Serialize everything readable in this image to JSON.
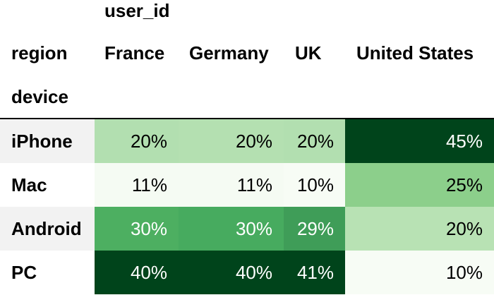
{
  "table": {
    "columns_header_label": "user_id",
    "column_index_name": "region",
    "row_index_name": "device",
    "columns": [
      "France",
      "Germany",
      "UK",
      "United States"
    ],
    "rows": [
      {
        "label": "iPhone",
        "cells": [
          "20%",
          "20%",
          "20%",
          "45%"
        ]
      },
      {
        "label": "Mac",
        "cells": [
          "11%",
          "11%",
          "10%",
          "25%"
        ]
      },
      {
        "label": "Android",
        "cells": [
          "30%",
          "30%",
          "29%",
          "20%"
        ]
      },
      {
        "label": "PC",
        "cells": [
          "40%",
          "40%",
          "41%",
          "10%"
        ]
      }
    ],
    "row_label_backgrounds": [
      "#f2f2f2",
      "#ffffff",
      "#f2f2f2",
      "#ffffff"
    ],
    "cell_backgrounds": [
      [
        "#b2dfb0",
        "#b4e0b1",
        "#b2dfb0",
        "#00441b"
      ],
      [
        "#f5fbf3",
        "#f5fbf3",
        "#f7fcf5",
        "#8ccf8b"
      ],
      [
        "#4daf61",
        "#47ab5f",
        "#3f9d58",
        "#b8e2b4"
      ],
      [
        "#00441b",
        "#00441b",
        "#00441b",
        "#f7fcf5"
      ]
    ],
    "cell_text_colors": [
      [
        "#000000",
        "#000000",
        "#000000",
        "#ffffff"
      ],
      [
        "#000000",
        "#000000",
        "#000000",
        "#000000"
      ],
      [
        "#ffffff",
        "#ffffff",
        "#ffffff",
        "#000000"
      ],
      [
        "#ffffff",
        "#ffffff",
        "#ffffff",
        "#000000"
      ]
    ]
  }
}
